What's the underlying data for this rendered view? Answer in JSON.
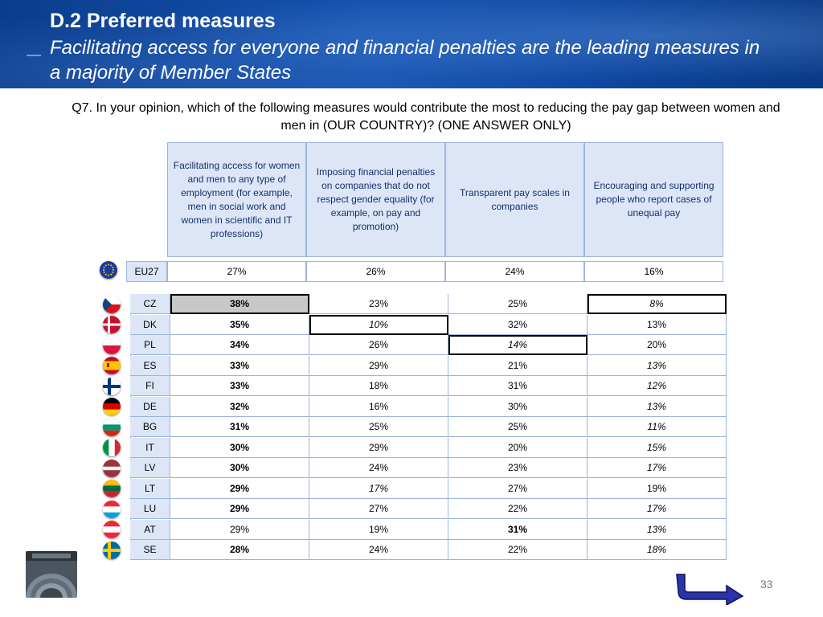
{
  "header": {
    "title": "D.2 Preferred measures",
    "subtitle": "Facilitating access for everyone and financial penalties are the leading measures in a majority of Member States"
  },
  "question": "Q7. In your opinion, which of the following measures would contribute the most to reducing the pay gap between women and men in (OUR COUNTRY)? (ONE ANSWER ONLY)",
  "columns": [
    "Facilitating access for women and men to any type of employment (for example, men in social work and women in scientific and IT professions)",
    "Imposing financial penalties on companies that do not respect gender equality (for example, on pay and promotion)",
    "Transparent pay scales in companies",
    "Encouraging and supporting people who report cases of unequal pay"
  ],
  "eu27": {
    "label": "EU27",
    "values": [
      "27%",
      "26%",
      "24%",
      "16%"
    ]
  },
  "countries": [
    {
      "code": "CZ",
      "values": [
        "38%",
        "23%",
        "25%",
        "8%"
      ]
    },
    {
      "code": "DK",
      "values": [
        "35%",
        "10%",
        "32%",
        "13%"
      ]
    },
    {
      "code": "PL",
      "values": [
        "34%",
        "26%",
        "14%",
        "20%"
      ]
    },
    {
      "code": "ES",
      "values": [
        "33%",
        "29%",
        "21%",
        "13%"
      ]
    },
    {
      "code": "FI",
      "values": [
        "33%",
        "18%",
        "31%",
        "12%"
      ]
    },
    {
      "code": "DE",
      "values": [
        "32%",
        "16%",
        "30%",
        "13%"
      ]
    },
    {
      "code": "BG",
      "values": [
        "31%",
        "25%",
        "25%",
        "11%"
      ]
    },
    {
      "code": "IT",
      "values": [
        "30%",
        "29%",
        "20%",
        "15%"
      ]
    },
    {
      "code": "LV",
      "values": [
        "30%",
        "24%",
        "23%",
        "17%"
      ]
    },
    {
      "code": "LT",
      "values": [
        "29%",
        "17%",
        "27%",
        "19%"
      ]
    },
    {
      "code": "LU",
      "values": [
        "29%",
        "27%",
        "22%",
        "17%"
      ]
    },
    {
      "code": "AT",
      "values": [
        "29%",
        "19%",
        "31%",
        "13%"
      ]
    },
    {
      "code": "SE",
      "values": [
        "28%",
        "24%",
        "22%",
        "18%"
      ]
    }
  ],
  "footer": {
    "page_number": "33",
    "nav_icon": "return-arrow-icon",
    "thumbnail_icon": "parliament-hemicycle-icon"
  },
  "colors": {
    "header_blue": "#0d47a1",
    "cell_blue": "#dce6f6",
    "border_blue": "#9bb5dc",
    "header_text": "#14306e"
  }
}
